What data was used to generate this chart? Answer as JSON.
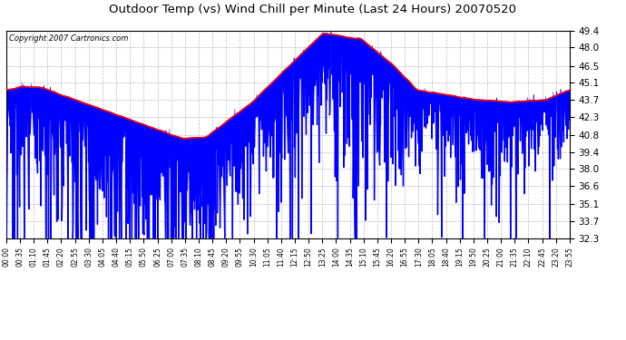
{
  "title": "Outdoor Temp (vs) Wind Chill per Minute (Last 24 Hours) 20070520",
  "copyright_text": "Copyright 2007 Cartronics.com",
  "background_color": "#ffffff",
  "plot_bg_color": "#ffffff",
  "grid_color": "#bbbbbb",
  "line_color_temp": "#ff0000",
  "line_color_wind": "#0000ff",
  "ylim": [
    32.3,
    49.4
  ],
  "yticks": [
    32.3,
    33.7,
    35.1,
    36.6,
    38.0,
    39.4,
    40.8,
    42.3,
    43.7,
    45.1,
    46.5,
    48.0,
    49.4
  ],
  "xtick_labels": [
    "00:00",
    "00:35",
    "01:10",
    "01:45",
    "02:20",
    "02:55",
    "03:30",
    "04:05",
    "04:40",
    "05:15",
    "05:50",
    "06:25",
    "07:00",
    "07:35",
    "08:10",
    "08:45",
    "09:20",
    "09:55",
    "10:30",
    "11:05",
    "11:40",
    "12:15",
    "12:50",
    "13:25",
    "14:00",
    "14:35",
    "15:10",
    "15:45",
    "16:20",
    "16:55",
    "17:30",
    "18:05",
    "18:40",
    "19:15",
    "19:50",
    "20:25",
    "21:00",
    "21:35",
    "22:10",
    "22:45",
    "23:20",
    "23:55"
  ],
  "num_points": 1440,
  "seed": 7
}
